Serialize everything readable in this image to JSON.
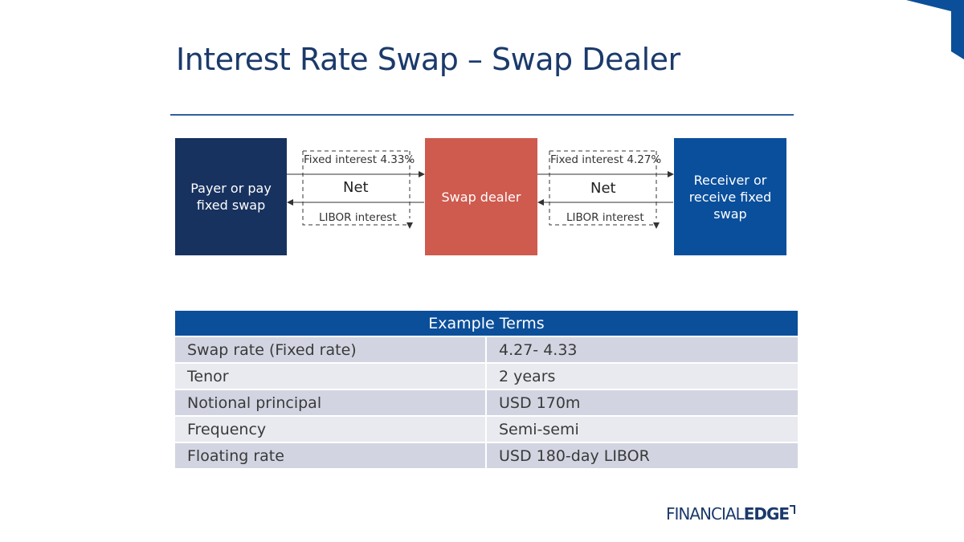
{
  "title": "Interest Rate Swap – Swap Dealer",
  "diagram": {
    "payer": "Payer or pay fixed swap",
    "dealer": "Swap dealer",
    "receiver": "Receiver or receive fixed swap",
    "left_fixed": "Fixed interest 4.33%",
    "left_net": "Net",
    "left_libor": "LIBOR interest",
    "right_fixed": "Fixed interest 4.27%",
    "right_net": "Net",
    "right_libor": "LIBOR interest"
  },
  "table": {
    "header": "Example Terms",
    "rows": [
      {
        "term": "Swap rate (Fixed rate)",
        "value": "4.27- 4.33"
      },
      {
        "term": "Tenor",
        "value": "2 years"
      },
      {
        "term": "Notional principal",
        "value": "USD 170m"
      },
      {
        "term": "Frequency",
        "value": "Semi-semi"
      },
      {
        "term": "Floating rate",
        "value": "USD 180-day LIBOR"
      }
    ]
  },
  "logo": {
    "part1": "FINANCIAL",
    "part2": "EDGE"
  },
  "colors": {
    "navy": "#17325f",
    "dealer": "#cf5a4e",
    "receiver": "#0a4f9c",
    "accent": "#0b4f9a"
  }
}
